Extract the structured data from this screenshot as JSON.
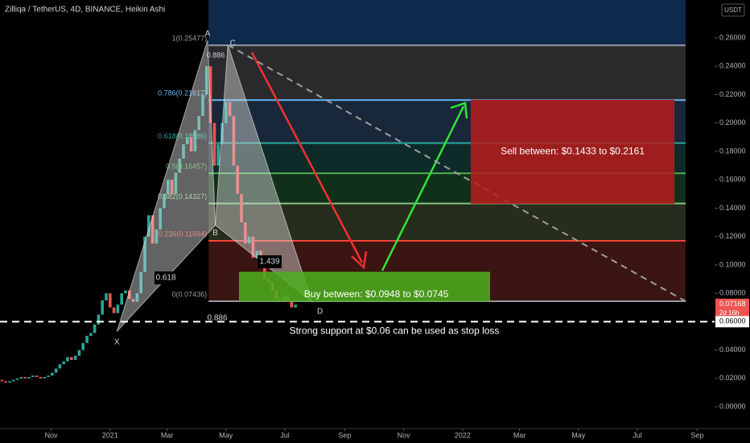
{
  "chart_data": {
    "type": "candlestick",
    "title": "Zilliqa / TetherUS, 4D, BINANCE, Heikin Ashi",
    "currency": "USDT",
    "xlim": [
      0,
      740
    ],
    "ylim": [
      -0.0153,
      0.2867
    ],
    "xticks": [
      {
        "value": 53,
        "label": "Nov"
      },
      {
        "value": 114,
        "label": "2021"
      },
      {
        "value": 173,
        "label": "Mar"
      },
      {
        "value": 234,
        "label": "May"
      },
      {
        "value": 295,
        "label": "Jul"
      },
      {
        "value": 357,
        "label": "Sep"
      },
      {
        "value": 418,
        "label": "Nov"
      },
      {
        "value": 479,
        "label": "2022"
      },
      {
        "value": 538,
        "label": "Mar"
      },
      {
        "value": 599,
        "label": "May"
      },
      {
        "value": 660,
        "label": "Jul"
      },
      {
        "value": 722,
        "label": "Sep"
      }
    ],
    "yticks": [
      {
        "value": 0,
        "label": "0.00000"
      },
      {
        "value": 0.02,
        "label": "0.02000"
      },
      {
        "value": 0.04,
        "label": "0.04000"
      },
      {
        "value": 0.06,
        "label": "0.06000"
      },
      {
        "value": 0.08,
        "label": "0.08000"
      },
      {
        "value": 0.1,
        "label": "0.10000"
      },
      {
        "value": 0.12,
        "label": "0.12000"
      },
      {
        "value": 0.14,
        "label": "0.14000"
      },
      {
        "value": 0.16,
        "label": "0.16000"
      },
      {
        "value": 0.18,
        "label": "0.18000"
      },
      {
        "value": 0.2,
        "label": "0.20000"
      },
      {
        "value": 0.22,
        "label": "0.22000"
      },
      {
        "value": 0.24,
        "label": "0.24000"
      },
      {
        "value": 0.26,
        "label": "0.26000"
      }
    ],
    "up_color": "#26a69a",
    "down_color": "#ef5350",
    "x": [
      2,
      6,
      10,
      14,
      18,
      22,
      26,
      30,
      34,
      38,
      42,
      46,
      50,
      54,
      58,
      62,
      66,
      70,
      74,
      78,
      82,
      86,
      90,
      94,
      98,
      102,
      106,
      110,
      114,
      118,
      122,
      126,
      130,
      134,
      138,
      142,
      146,
      150,
      154,
      158,
      162,
      166,
      170,
      174,
      178,
      182,
      186,
      190,
      194,
      198,
      202,
      206,
      210,
      214,
      218,
      222,
      226,
      230,
      234,
      238,
      242,
      246,
      250,
      254,
      258,
      262,
      266,
      270,
      274,
      278,
      282,
      286,
      290,
      294,
      298,
      302,
      306
    ],
    "open": [
      0.019,
      0.018,
      0.017,
      0.018,
      0.019,
      0.02,
      0.021,
      0.02,
      0.021,
      0.022,
      0.021,
      0.02,
      0.021,
      0.022,
      0.024,
      0.027,
      0.03,
      0.032,
      0.035,
      0.033,
      0.036,
      0.04,
      0.045,
      0.05,
      0.052,
      0.058,
      0.065,
      0.075,
      0.08,
      0.07,
      0.066,
      0.072,
      0.08,
      0.082,
      0.076,
      0.074,
      0.08,
      0.095,
      0.12,
      0.135,
      0.115,
      0.125,
      0.14,
      0.15,
      0.16,
      0.15,
      0.165,
      0.175,
      0.185,
      0.19,
      0.18,
      0.195,
      0.205,
      0.22,
      0.24,
      0.2,
      0.17,
      0.185,
      0.2,
      0.215,
      0.205,
      0.17,
      0.15,
      0.13,
      0.115,
      0.12,
      0.105,
      0.11,
      0.098,
      0.09,
      0.088,
      0.082,
      0.076,
      0.075,
      0.078,
      0.074,
      0.07
    ],
    "close": [
      0.018,
      0.017,
      0.018,
      0.019,
      0.02,
      0.021,
      0.02,
      0.021,
      0.022,
      0.021,
      0.02,
      0.021,
      0.022,
      0.024,
      0.027,
      0.03,
      0.032,
      0.035,
      0.033,
      0.036,
      0.04,
      0.045,
      0.05,
      0.052,
      0.058,
      0.065,
      0.075,
      0.08,
      0.07,
      0.066,
      0.072,
      0.08,
      0.082,
      0.076,
      0.074,
      0.08,
      0.095,
      0.12,
      0.135,
      0.115,
      0.125,
      0.14,
      0.15,
      0.16,
      0.15,
      0.165,
      0.175,
      0.185,
      0.19,
      0.18,
      0.195,
      0.205,
      0.22,
      0.24,
      0.2,
      0.17,
      0.185,
      0.2,
      0.215,
      0.205,
      0.17,
      0.15,
      0.13,
      0.115,
      0.12,
      0.105,
      0.11,
      0.098,
      0.09,
      0.088,
      0.082,
      0.076,
      0.075,
      0.078,
      0.074,
      0.07,
      0.072
    ],
    "fib": {
      "x_range": [
        216,
        710
      ],
      "top_color": "#0e2a4c",
      "levels": [
        {
          "value": 0.25477,
          "label": "1(0.25477)",
          "color": "#9598a1",
          "zone": "#2a2a2d"
        },
        {
          "value": 0.21617,
          "label": "0.786(0.21617)",
          "color": "#64b5f6",
          "zone": "#18283a"
        },
        {
          "value": 0.18586,
          "label": "0.618(0.18586)",
          "color": "#26a69a",
          "zone": "#0e2b29"
        },
        {
          "value": 0.16457,
          "label": "0.5(0.16457)",
          "color": "#4caf50",
          "zone": "#11301a"
        },
        {
          "value": 0.14327,
          "label": "0.382(0.14327)",
          "color": "#81c784",
          "zone": "#262d1c"
        },
        {
          "value": 0.11694,
          "label": "0.236(0.11694)",
          "color": "#f44336",
          "zone": "#3b1512"
        },
        {
          "value": 0.07436,
          "label": "0(0.07436)",
          "color": "#9598a1"
        }
      ]
    },
    "pattern": {
      "points": [
        {
          "label": "X",
          "day": 121,
          "price": 0.053
        },
        {
          "label": "A",
          "day": 215,
          "price": 0.2584
        },
        {
          "label": "B",
          "day": 223,
          "price": 0.128
        },
        {
          "label": "C",
          "day": 236,
          "price": 0.255
        },
        {
          "label": "D",
          "day": 323,
          "price": 0.074
        }
      ],
      "ratios": [
        "0.618",
        "0.886",
        "1.439",
        "0.886"
      ]
    },
    "buy_zone": {
      "text": "Buy between: $0.0948 to $0.0745",
      "top": 0.0948,
      "bottom": 0.0745,
      "x_range": [
        248,
        507
      ],
      "color": "#4caf1e"
    },
    "sell_zone": {
      "text": "Sell between: $0.1433 to $0.2161",
      "top": 0.2161,
      "bottom": 0.1433,
      "x_range": [
        488,
        698
      ],
      "color": "#b71c1c"
    },
    "support": {
      "value": 0.06,
      "label": "0.06000",
      "text": "Strong support at $0.06 can be used as stop loss"
    },
    "last_price": {
      "value": 0.07168,
      "label": "0.07168",
      "countdown": "2d 16h"
    }
  }
}
